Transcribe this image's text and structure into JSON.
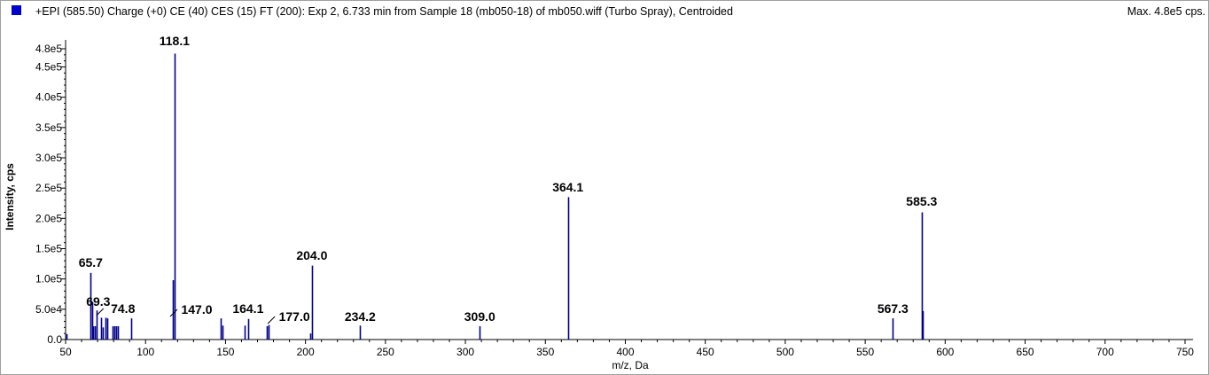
{
  "header": {
    "title": "+EPI (585.50) Charge (+0) CE (40) CES (15) FT (200): Exp 2, 6.733 min from Sample 18 (mb050-18) of mb050.wiff (Turbo Spray), Centroided",
    "max_label": "Max. 4.8e5 cps."
  },
  "colors": {
    "series": "#00008b",
    "swatch": "#0000cc",
    "axis": "#000000"
  },
  "chart_data": {
    "type": "bar",
    "title": "",
    "xlabel": "m/z, Da",
    "ylabel": "Intensity, cps",
    "xlim": [
      50,
      755
    ],
    "ylim": [
      0,
      480000
    ],
    "x_ticks": [
      50,
      100,
      150,
      200,
      250,
      300,
      350,
      400,
      450,
      500,
      550,
      600,
      650,
      700,
      750
    ],
    "y_ticks": [
      {
        "value": 0,
        "label": "0.0"
      },
      {
        "value": 50000,
        "label": "5.0e4"
      },
      {
        "value": 100000,
        "label": "1.0e5"
      },
      {
        "value": 150000,
        "label": "1.5e5"
      },
      {
        "value": 200000,
        "label": "2.0e5"
      },
      {
        "value": 250000,
        "label": "2.5e5"
      },
      {
        "value": 300000,
        "label": "3.0e5"
      },
      {
        "value": 350000,
        "label": "3.5e5"
      },
      {
        "value": 400000,
        "label": "4.0e5"
      },
      {
        "value": 450000,
        "label": "4.5e5"
      },
      {
        "value": 480000,
        "label": "4.8e5"
      }
    ],
    "peaks": [
      {
        "x": 50.5,
        "y": 9000
      },
      {
        "x": 65.7,
        "y": 110000
      },
      {
        "x": 66.5,
        "y": 62000
      },
      {
        "x": 67.3,
        "y": 22000
      },
      {
        "x": 68.3,
        "y": 22000
      },
      {
        "x": 69.3,
        "y": 48000
      },
      {
        "x": 72.0,
        "y": 36000
      },
      {
        "x": 73.2,
        "y": 20000
      },
      {
        "x": 74.8,
        "y": 36000
      },
      {
        "x": 76.0,
        "y": 35000
      },
      {
        "x": 79.5,
        "y": 22000
      },
      {
        "x": 80.5,
        "y": 22000
      },
      {
        "x": 81.5,
        "y": 22000
      },
      {
        "x": 82.5,
        "y": 22000
      },
      {
        "x": 91.0,
        "y": 35000
      },
      {
        "x": 117.0,
        "y": 98000
      },
      {
        "x": 118.1,
        "y": 472000
      },
      {
        "x": 147.0,
        "y": 35000
      },
      {
        "x": 148.0,
        "y": 23000
      },
      {
        "x": 162.0,
        "y": 23000
      },
      {
        "x": 164.1,
        "y": 34000
      },
      {
        "x": 176.0,
        "y": 22000
      },
      {
        "x": 177.0,
        "y": 24000
      },
      {
        "x": 203.0,
        "y": 10000
      },
      {
        "x": 204.0,
        "y": 122000
      },
      {
        "x": 234.2,
        "y": 23000
      },
      {
        "x": 309.0,
        "y": 22000
      },
      {
        "x": 364.1,
        "y": 235000
      },
      {
        "x": 567.3,
        "y": 35000
      },
      {
        "x": 585.3,
        "y": 210000
      },
      {
        "x": 586.0,
        "y": 47000
      }
    ],
    "annotations": [
      {
        "text": "118.1",
        "x": 118.1
      },
      {
        "text": "65.7",
        "x": 65.7
      },
      {
        "text": "69.3",
        "x": 69.3
      },
      {
        "text": "74.8",
        "x": 74.8
      },
      {
        "text": "147.0",
        "x": 147.0
      },
      {
        "text": "164.1",
        "x": 164.1
      },
      {
        "text": "177.0",
        "x": 177.0
      },
      {
        "text": "204.0",
        "x": 204.0
      },
      {
        "text": "234.2",
        "x": 234.2
      },
      {
        "text": "309.0",
        "x": 309.0
      },
      {
        "text": "364.1",
        "x": 364.1
      },
      {
        "text": "567.3",
        "x": 567.3
      },
      {
        "text": "585.3",
        "x": 585.3
      }
    ]
  }
}
